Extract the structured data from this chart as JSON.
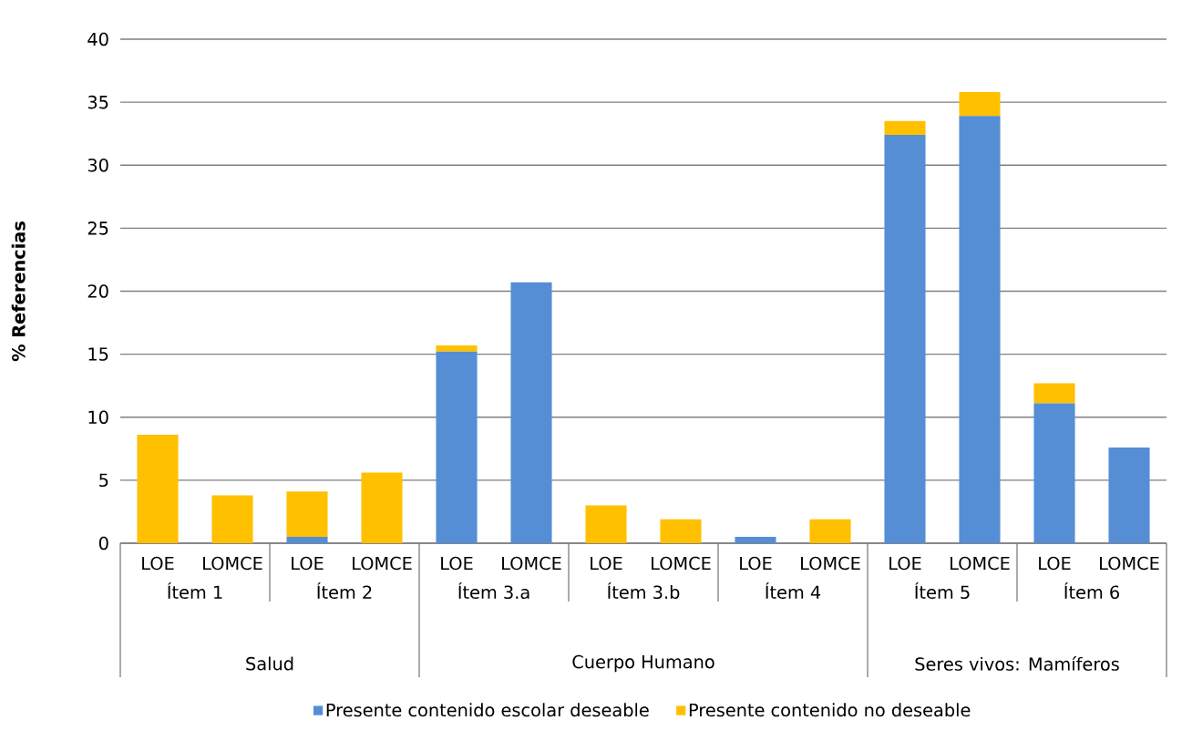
{
  "chart_data": {
    "type": "bar",
    "stacked": true,
    "ylabel": "% Referencias",
    "categories": [
      "LOE",
      "LOMCE",
      "LOE",
      "LOMCE",
      "LOE",
      "LOMCE",
      "LOE",
      "LOMCE",
      "LOE",
      "LOMCE",
      "LOE",
      "LOMCE",
      "LOE",
      "LOMCE"
    ],
    "series": [
      {
        "name": "Presente contenido escolar deseable",
        "color": "#558ed5",
        "values": [
          0,
          0,
          0.5,
          0,
          15.2,
          20.7,
          0,
          0,
          0.5,
          0,
          32.4,
          33.9,
          11.1,
          7.6
        ]
      },
      {
        "name": "Presente contenido no deseable",
        "color": "#ffc000",
        "values": [
          8.6,
          3.8,
          3.6,
          5.6,
          0.5,
          0,
          3.0,
          1.9,
          0,
          1.9,
          1.1,
          1.9,
          1.6,
          0
        ]
      }
    ],
    "annotations": [
      "Ítem 1",
      "Ítem 2",
      "Ítem 3.a",
      "Ítem 3.b",
      "Ítem 4",
      "Ítem 5",
      "Ítem 6",
      "Salud",
      "Cuerpo Humano",
      "Seres vivos: Mamíferos"
    ],
    "ylim": [
      0,
      40
    ],
    "yticks": [
      0,
      5,
      10,
      15,
      20,
      25,
      30,
      35,
      40
    ],
    "grid": "y",
    "legend": "bottom"
  }
}
